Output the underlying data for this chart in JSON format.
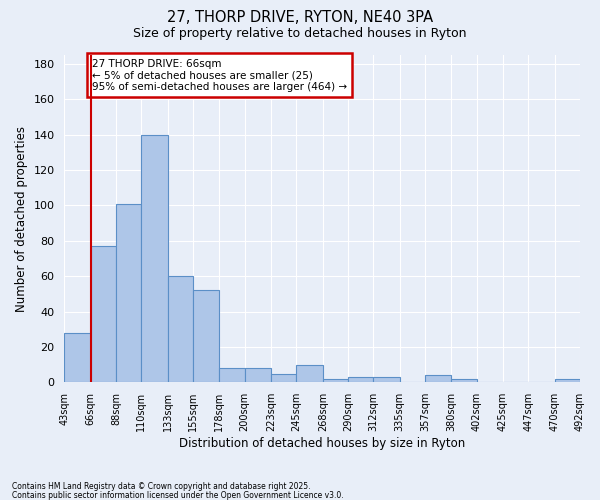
{
  "title1": "27, THORP DRIVE, RYTON, NE40 3PA",
  "title2": "Size of property relative to detached houses in Ryton",
  "xlabel": "Distribution of detached houses by size in Ryton",
  "ylabel": "Number of detached properties",
  "bin_edges": [
    43,
    66,
    88,
    110,
    133,
    155,
    178,
    200,
    223,
    245,
    268,
    290,
    312,
    335,
    357,
    380,
    402,
    425,
    447,
    470,
    492
  ],
  "bar_heights": [
    28,
    77,
    101,
    140,
    60,
    52,
    8,
    8,
    5,
    10,
    2,
    3,
    3,
    0,
    4,
    2,
    0,
    0,
    0,
    2
  ],
  "bar_color": "#aec6e8",
  "bar_edge_color": "#5b8fc7",
  "bg_color": "#e8eef8",
  "grid_color": "#ffffff",
  "red_line_x": 66,
  "ylim": [
    0,
    185
  ],
  "yticks": [
    0,
    20,
    40,
    60,
    80,
    100,
    120,
    140,
    160,
    180
  ],
  "annotation_title": "27 THORP DRIVE: 66sqm",
  "annotation_line1": "← 5% of detached houses are smaller (25)",
  "annotation_line2": "95% of semi-detached houses are larger (464) →",
  "annotation_box_color": "#ffffff",
  "annotation_box_edge": "#cc0000",
  "footnote1": "Contains HM Land Registry data © Crown copyright and database right 2025.",
  "footnote2": "Contains public sector information licensed under the Open Government Licence v3.0."
}
